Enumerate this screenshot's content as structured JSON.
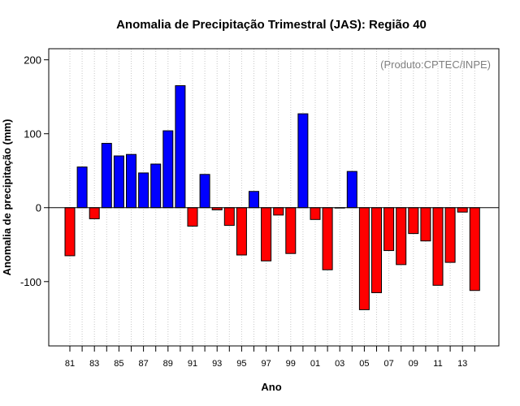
{
  "chart_data": {
    "type": "bar",
    "title": "Anomalia de Precipitação Trimestral (JAS): Região 40",
    "xlabel": "Ano",
    "ylabel": "Anomalia de precipitação (mm)",
    "source_note": "(Produto:CPTEC/INPE)",
    "ylim": [
      -187,
      215
    ],
    "yticks": [
      -100,
      0,
      100,
      200
    ],
    "grid": "vertical-dotted",
    "categories": [
      "81",
      "82",
      "83",
      "84",
      "85",
      "86",
      "87",
      "88",
      "89",
      "90",
      "91",
      "92",
      "93",
      "94",
      "95",
      "96",
      "97",
      "98",
      "99",
      "00",
      "01",
      "02",
      "03",
      "04",
      "05",
      "06",
      "07",
      "08",
      "09",
      "10",
      "11",
      "12",
      "13",
      "14"
    ],
    "tick_labels": [
      "81",
      "83",
      "85",
      "87",
      "89",
      "91",
      "93",
      "95",
      "97",
      "99",
      "01",
      "03",
      "05",
      "07",
      "09",
      "11",
      "13"
    ],
    "values": [
      -65,
      55,
      -15,
      87,
      70,
      72,
      47,
      59,
      104,
      165,
      -25,
      45,
      -3,
      -24,
      -64,
      22,
      -72,
      -10,
      -62,
      127,
      -16,
      -84,
      0,
      49,
      -138,
      -115,
      -58,
      -77,
      -35,
      -45,
      -105,
      -74,
      -6,
      -112
    ],
    "colors": {
      "positive": "#0000ff",
      "negative": "#ff0000",
      "zero_line": "#000000",
      "grid": "#c8c8c8"
    }
  }
}
